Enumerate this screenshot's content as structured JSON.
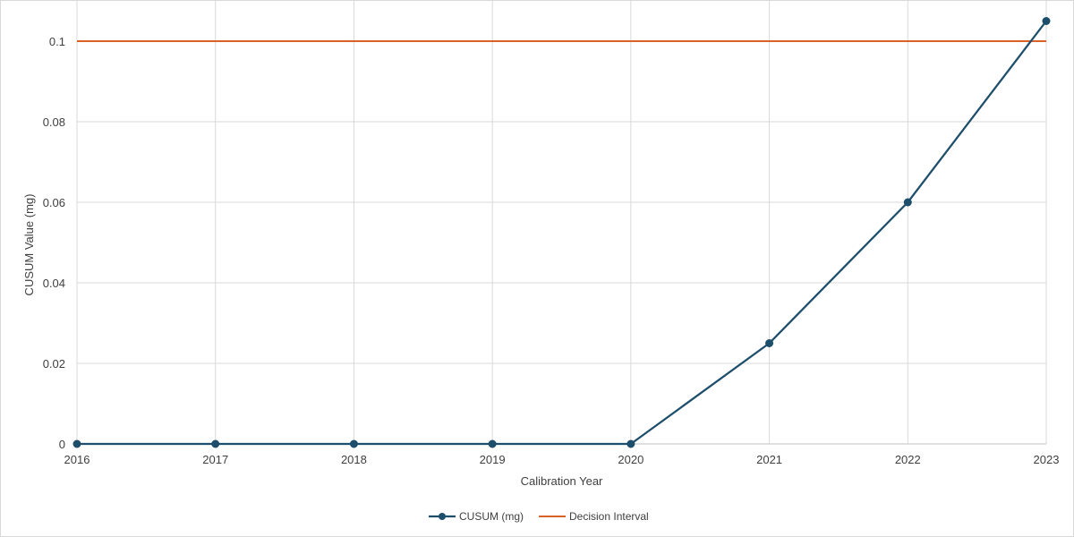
{
  "chart_data": {
    "type": "line",
    "title": "",
    "xlabel": "Calibration Year",
    "ylabel": "CUSUM Value (mg)",
    "categories": [
      "2016",
      "2017",
      "2018",
      "2019",
      "2020",
      "2021",
      "2022",
      "2023"
    ],
    "ylim": [
      0,
      0.11
    ],
    "yticks": [
      0,
      0.02,
      0.04,
      0.06,
      0.08,
      0.1
    ],
    "ytick_labels": [
      "0",
      "0.02",
      "0.04",
      "0.06",
      "0.08",
      "0.1"
    ],
    "grid": true,
    "legend_position": "bottom",
    "series": [
      {
        "name": "CUSUM (mg)",
        "values": [
          0,
          0,
          0,
          0,
          0,
          0.025,
          0.06,
          0.105
        ],
        "color": "#1d4e6b",
        "markers": true
      },
      {
        "name": "Decision Interval",
        "values": [
          0.1,
          0.1,
          0.1,
          0.1,
          0.1,
          0.1,
          0.1,
          0.1
        ],
        "color": "#d9622b",
        "markers": false
      }
    ]
  }
}
